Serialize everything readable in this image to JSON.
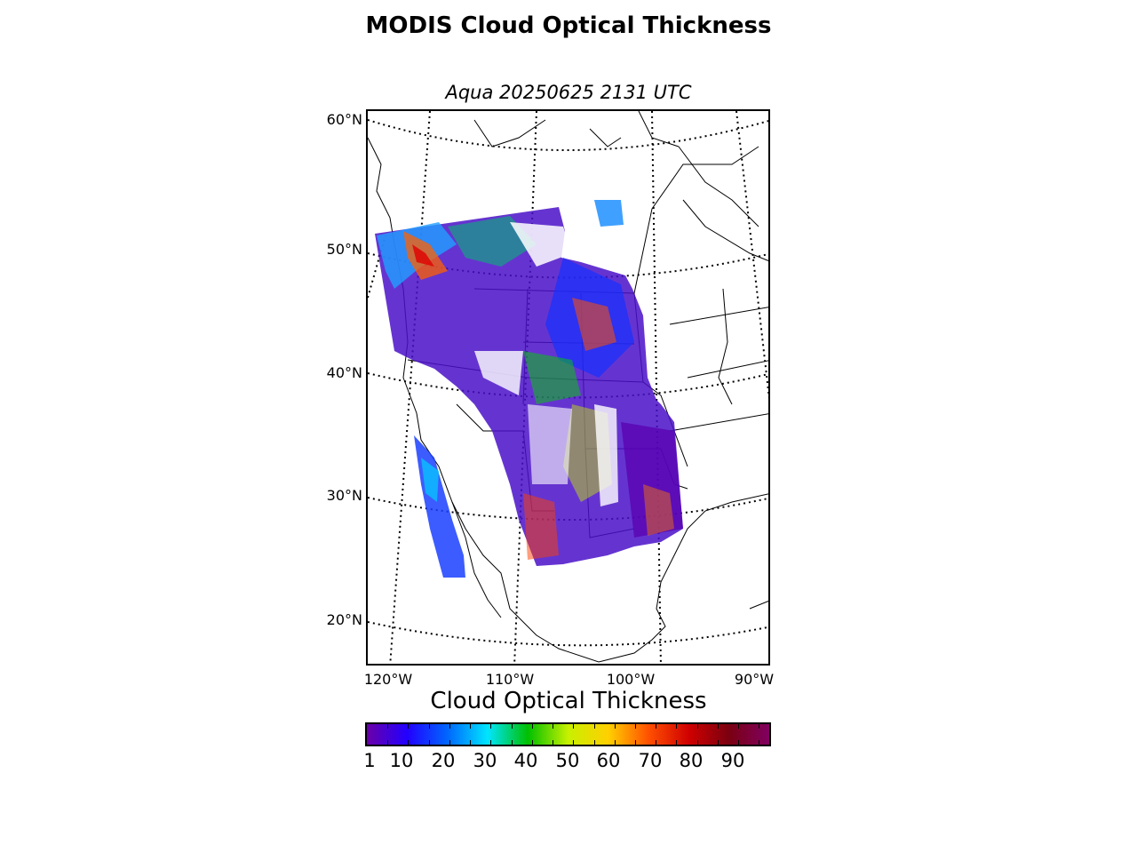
{
  "title": "MODIS Cloud Optical Thickness",
  "subtitle": "Aqua 20250625 2131 UTC",
  "map": {
    "lat_labels": [
      "60°N",
      "50°N",
      "40°N",
      "30°N",
      "20°N"
    ],
    "lon_labels": [
      "120°W",
      "110°W",
      "100°W",
      "90°W"
    ]
  },
  "colorbar": {
    "title": "Cloud Optical Thickness",
    "tick_labels": [
      "1",
      "10",
      "20",
      "30",
      "40",
      "50",
      "60",
      "70",
      "80",
      "90"
    ],
    "colors": [
      "#6a00a8",
      "#2200ff",
      "#0066ff",
      "#00e5ff",
      "#00c000",
      "#c8f000",
      "#ffd000",
      "#ff5000",
      "#d00000",
      "#7a0010",
      "#800060"
    ]
  }
}
